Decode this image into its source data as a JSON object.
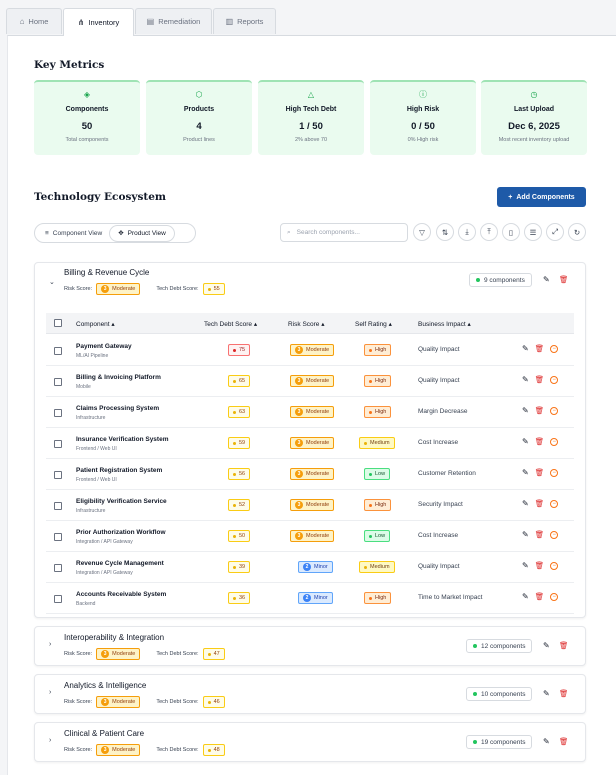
{
  "tabs": [
    {
      "label": "Home",
      "icon": "home-icon"
    },
    {
      "label": "Inventory",
      "icon": "nodes-icon"
    },
    {
      "label": "Remediation",
      "icon": "document-icon"
    },
    {
      "label": "Reports",
      "icon": "report-icon"
    }
  ],
  "key_metrics": {
    "title": "Key Metrics",
    "cards": [
      {
        "label": "Components",
        "value": "50",
        "sub": "Total components",
        "icon": "layers-icon"
      },
      {
        "label": "Products",
        "value": "4",
        "sub": "Product lines",
        "icon": "cube-icon"
      },
      {
        "label": "High Tech Debt",
        "value": "1 / 50",
        "sub": "2% above 70",
        "icon": "warning-icon"
      },
      {
        "label": "High Risk",
        "value": "0 / 50",
        "sub": "0% High risk",
        "icon": "alert-circle-icon"
      },
      {
        "label": "Last Upload",
        "value": "Dec 6, 2025",
        "sub": "Most recent inventory upload",
        "icon": "clock-icon"
      }
    ]
  },
  "ecosystem": {
    "title": "Technology Ecosystem",
    "add_button": "Add Components",
    "view_component": "Component View",
    "view_product": "Product View",
    "search_placeholder": "Search components..."
  },
  "labels": {
    "risk_score": "Risk Score:",
    "tech_debt_score": "Tech Debt Score:"
  },
  "table_headers": {
    "component": "Component",
    "tech_debt": "Tech Debt Score",
    "risk": "Risk Score",
    "self_rating": "Self Rating",
    "impact": "Business Impact"
  },
  "groups": [
    {
      "name": "Billing & Revenue Cycle",
      "risk_num": "3",
      "risk": "Moderate",
      "debt": "55",
      "count": "9 components"
    },
    {
      "name": "Interoperability & Integration",
      "risk_num": "3",
      "risk": "Moderate",
      "debt": "47",
      "count": "12 components"
    },
    {
      "name": "Analytics & Intelligence",
      "risk_num": "3",
      "risk": "Moderate",
      "debt": "46",
      "count": "10 components"
    },
    {
      "name": "Clinical & Patient Care",
      "risk_num": "3",
      "risk": "Moderate",
      "debt": "48",
      "count": "19 components"
    }
  ],
  "rows": [
    {
      "name": "Payment Gateway",
      "category": "ML/AI Pipeline",
      "debt": "75",
      "risk_num": "3",
      "risk": "Moderate",
      "rating": "High",
      "impact": "Quality Impact"
    },
    {
      "name": "Billing & Invoicing Platform",
      "category": "Mobile",
      "debt": "65",
      "risk_num": "3",
      "risk": "Moderate",
      "rating": "High",
      "impact": "Quality Impact"
    },
    {
      "name": "Claims Processing System",
      "category": "Infrastructure",
      "debt": "63",
      "risk_num": "3",
      "risk": "Moderate",
      "rating": "High",
      "impact": "Margin Decrease"
    },
    {
      "name": "Insurance Verification System",
      "category": "Frontend / Web UI",
      "debt": "59",
      "risk_num": "3",
      "risk": "Moderate",
      "rating": "Medium",
      "impact": "Cost Increase"
    },
    {
      "name": "Patient Registration System",
      "category": "Frontend / Web UI",
      "debt": "56",
      "risk_num": "3",
      "risk": "Moderate",
      "rating": "Low",
      "impact": "Customer Retention"
    },
    {
      "name": "Eligibility Verification Service",
      "category": "Infrastructure",
      "debt": "52",
      "risk_num": "3",
      "risk": "Moderate",
      "rating": "High",
      "impact": "Security Impact"
    },
    {
      "name": "Prior Authorization Workflow",
      "category": "Integration / API Gateway",
      "debt": "50",
      "risk_num": "3",
      "risk": "Moderate",
      "rating": "Low",
      "impact": "Cost Increase"
    },
    {
      "name": "Revenue Cycle Management",
      "category": "Integration / API Gateway",
      "debt": "39",
      "risk_num": "2",
      "risk": "Minor",
      "rating": "Medium",
      "impact": "Quality Impact"
    },
    {
      "name": "Accounts Receivable System",
      "category": "Backend",
      "debt": "36",
      "risk_num": "2",
      "risk": "Minor",
      "rating": "High",
      "impact": "Time to Market Impact"
    }
  ],
  "colors": {
    "accent": "#1e5aa8",
    "metric_bg": "#eafbef",
    "moderate": "#f59e0b",
    "minor": "#3b82f6",
    "danger": "#dc2626"
  }
}
